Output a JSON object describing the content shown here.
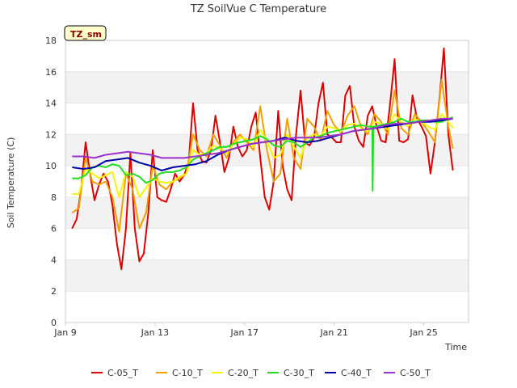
{
  "chart_data": {
    "type": "line",
    "title": "TZ SoilVue C Temperature",
    "xlabel": "Time",
    "ylabel": "Soil Temperature (C)",
    "badge": "TZ_sm",
    "xlim": [
      0,
      18
    ],
    "ylim": [
      0,
      18
    ],
    "x_ticks": [
      {
        "x": 0,
        "label": "Jan 9"
      },
      {
        "x": 4,
        "label": "Jan 13"
      },
      {
        "x": 8,
        "label": "Jan 17"
      },
      {
        "x": 12,
        "label": "Jan 21"
      },
      {
        "x": 16,
        "label": "Jan 25"
      }
    ],
    "y_ticks": [
      0,
      2,
      4,
      6,
      8,
      10,
      12,
      14,
      16,
      18
    ],
    "grid": "horizontal bands",
    "legend_position": "bottom",
    "colors": {
      "C-05_T": "#dd0000",
      "C-10_T": "#f0a000",
      "C-20_T": "#f5f500",
      "C-30_T": "#22dd22",
      "C-40_T": "#0000aa",
      "C-50_T": "#9933cc",
      "band": "#f2f2f2",
      "badge_bg": "#ffffcc",
      "badge_border": "#000000"
    },
    "series": [
      {
        "name": "C-05_T",
        "x": [
          0.3,
          0.5,
          0.7,
          0.9,
          1.1,
          1.3,
          1.5,
          1.7,
          1.9,
          2.1,
          2.3,
          2.5,
          2.7,
          2.9,
          3.1,
          3.3,
          3.5,
          3.7,
          3.9,
          4.1,
          4.3,
          4.5,
          4.7,
          4.9,
          5.1,
          5.3,
          5.5,
          5.7,
          5.9,
          6.1,
          6.3,
          6.5,
          6.7,
          6.9,
          7.1,
          7.3,
          7.5,
          7.7,
          7.9,
          8.1,
          8.3,
          8.5,
          8.7,
          8.9,
          9.1,
          9.3,
          9.5,
          9.7,
          9.9,
          10.1,
          10.3,
          10.5,
          10.7,
          10.9,
          11.1,
          11.3,
          11.5,
          11.7,
          11.9,
          12.1,
          12.3,
          12.5,
          12.7,
          12.9,
          13.1,
          13.3,
          13.5,
          13.7,
          13.9,
          14.1,
          14.3,
          14.5,
          14.7,
          14.9,
          15.1,
          15.3,
          15.5,
          15.7,
          15.9,
          16.1,
          16.3,
          16.5,
          16.7,
          16.9,
          17.1,
          17.3
        ],
        "y": [
          6.0,
          6.6,
          8.5,
          11.5,
          9.5,
          7.8,
          8.8,
          9.5,
          9.0,
          7.5,
          5.0,
          3.4,
          6.0,
          10.8,
          6.0,
          3.9,
          4.4,
          7.0,
          11.0,
          8.0,
          7.8,
          7.7,
          8.5,
          9.5,
          9.0,
          9.4,
          10.2,
          14.0,
          11.0,
          10.3,
          10.2,
          11.0,
          13.2,
          11.5,
          9.6,
          10.5,
          12.5,
          11.2,
          10.6,
          11.0,
          12.5,
          13.4,
          10.5,
          8.0,
          7.2,
          9.0,
          13.5,
          10.0,
          8.5,
          7.8,
          12.0,
          14.8,
          11.5,
          11.3,
          11.8,
          14.0,
          15.3,
          12.0,
          11.8,
          11.5,
          11.5,
          14.5,
          15.1,
          12.5,
          11.6,
          11.2,
          13.2,
          13.8,
          12.5,
          11.6,
          11.5,
          14.0,
          16.8,
          11.6,
          11.5,
          11.7,
          14.5,
          13.0,
          12.5,
          11.9,
          9.5,
          11.5,
          14.3,
          17.5,
          12.0,
          9.7
        ]
      },
      {
        "name": "C-10_T",
        "x": [
          0.3,
          0.6,
          0.9,
          1.2,
          1.5,
          1.8,
          2.1,
          2.4,
          2.7,
          3.0,
          3.3,
          3.6,
          3.9,
          4.2,
          4.5,
          4.8,
          5.1,
          5.4,
          5.7,
          6.0,
          6.3,
          6.6,
          6.9,
          7.2,
          7.5,
          7.8,
          8.1,
          8.4,
          8.7,
          9.0,
          9.3,
          9.6,
          9.9,
          10.2,
          10.5,
          10.8,
          11.1,
          11.4,
          11.7,
          12.0,
          12.3,
          12.6,
          12.9,
          13.2,
          13.5,
          13.8,
          14.1,
          14.4,
          14.7,
          15.0,
          15.3,
          15.6,
          15.9,
          16.2,
          16.5,
          16.8,
          17.1,
          17.3
        ],
        "y": [
          7.0,
          7.3,
          10.5,
          9.0,
          8.8,
          9.0,
          8.0,
          5.8,
          9.5,
          8.5,
          6.0,
          7.0,
          10.0,
          8.8,
          8.5,
          9.0,
          9.2,
          9.5,
          12.0,
          11.0,
          10.6,
          12.0,
          11.3,
          10.5,
          11.5,
          12.0,
          11.5,
          11.0,
          13.8,
          11.0,
          9.0,
          9.5,
          13.0,
          10.5,
          9.8,
          13.0,
          12.5,
          11.6,
          13.5,
          12.6,
          12.1,
          13.2,
          13.8,
          12.5,
          12.0,
          13.3,
          12.8,
          12.0,
          14.8,
          12.4,
          12.0,
          13.3,
          12.8,
          12.2,
          11.5,
          15.5,
          12.5,
          11.1
        ]
      },
      {
        "name": "C-20_T",
        "x": [
          0.3,
          0.6,
          0.9,
          1.2,
          1.5,
          1.8,
          2.1,
          2.4,
          2.7,
          3.0,
          3.3,
          3.6,
          3.9,
          4.2,
          4.5,
          4.8,
          5.1,
          5.4,
          5.7,
          6.0,
          6.3,
          6.6,
          6.9,
          7.2,
          7.5,
          7.8,
          8.1,
          8.4,
          8.7,
          9.0,
          9.3,
          9.6,
          9.9,
          10.2,
          10.5,
          10.8,
          11.1,
          11.4,
          11.7,
          12.0,
          12.3,
          12.6,
          12.9,
          13.2,
          13.5,
          13.8,
          14.1,
          14.4,
          14.7,
          15.0,
          15.3,
          15.6,
          15.9,
          16.2,
          16.5,
          16.8,
          17.1,
          17.3
        ],
        "y": [
          8.2,
          8.2,
          9.8,
          9.5,
          9.2,
          9.4,
          9.6,
          8.0,
          9.6,
          9.3,
          8.0,
          8.6,
          9.2,
          9.0,
          8.9,
          9.0,
          9.3,
          9.5,
          11.0,
          10.7,
          10.8,
          11.3,
          11.1,
          10.8,
          11.4,
          11.8,
          11.7,
          11.2,
          12.3,
          11.6,
          10.5,
          10.7,
          12.0,
          11.2,
          10.5,
          11.8,
          12.0,
          11.9,
          12.5,
          12.4,
          12.2,
          12.6,
          12.7,
          12.4,
          12.2,
          12.8,
          12.7,
          12.3,
          13.3,
          12.8,
          12.5,
          13.0,
          12.8,
          12.5,
          12.3,
          13.3,
          12.8,
          12.4
        ]
      },
      {
        "name": "C-30_T",
        "x": [
          0.3,
          0.6,
          0.9,
          1.2,
          1.5,
          1.8,
          2.1,
          2.4,
          2.7,
          3.0,
          3.3,
          3.6,
          3.9,
          4.2,
          4.5,
          4.8,
          5.1,
          5.4,
          5.7,
          6.0,
          6.3,
          6.6,
          6.9,
          7.2,
          7.5,
          7.8,
          8.1,
          8.4,
          8.7,
          9.0,
          9.3,
          9.6,
          9.9,
          10.2,
          10.5,
          10.8,
          11.1,
          11.4,
          11.7,
          12.0,
          12.3,
          12.6,
          12.9,
          13.2,
          13.5,
          13.7,
          13.72,
          13.75,
          13.8,
          14.1,
          14.4,
          14.7,
          15.0,
          15.3,
          15.6,
          15.9,
          16.2,
          16.5,
          16.8,
          17.1,
          17.3
        ],
        "y": [
          9.2,
          9.2,
          9.4,
          9.9,
          10.0,
          9.9,
          10.1,
          10.0,
          9.4,
          9.5,
          9.3,
          8.9,
          9.1,
          9.5,
          9.6,
          9.6,
          9.7,
          9.9,
          10.4,
          10.6,
          10.8,
          11.0,
          11.2,
          11.2,
          11.4,
          11.5,
          11.6,
          11.7,
          11.9,
          11.7,
          11.3,
          11.2,
          11.6,
          11.5,
          11.2,
          11.5,
          11.8,
          11.9,
          12.1,
          12.2,
          12.3,
          12.4,
          12.5,
          12.6,
          12.5,
          12.5,
          8.4,
          12.5,
          12.5,
          12.6,
          12.7,
          12.8,
          13.0,
          12.8,
          12.8,
          12.9,
          12.9,
          12.8,
          12.8,
          13.0,
          13.1
        ]
      },
      {
        "name": "C-40_T",
        "x": [
          0.3,
          0.8,
          1.3,
          1.8,
          2.3,
          2.8,
          3.3,
          3.8,
          4.3,
          4.8,
          5.3,
          5.8,
          6.3,
          6.8,
          7.3,
          7.8,
          8.3,
          8.8,
          9.3,
          9.8,
          10.3,
          10.8,
          11.3,
          11.8,
          12.3,
          12.8,
          13.3,
          13.8,
          14.3,
          14.8,
          15.3,
          15.8,
          16.3,
          16.8,
          17.3
        ],
        "y": [
          9.9,
          9.8,
          9.9,
          10.3,
          10.4,
          10.5,
          10.2,
          10.0,
          9.7,
          9.9,
          10.0,
          10.1,
          10.3,
          10.7,
          11.0,
          11.2,
          11.4,
          11.5,
          11.6,
          11.8,
          11.6,
          11.5,
          11.6,
          11.8,
          12.0,
          12.2,
          12.3,
          12.4,
          12.5,
          12.6,
          12.7,
          12.8,
          12.8,
          12.9,
          13.0
        ]
      },
      {
        "name": "C-50_T",
        "x": [
          0.3,
          0.8,
          1.3,
          1.8,
          2.3,
          2.8,
          3.3,
          3.8,
          4.3,
          4.8,
          5.3,
          5.8,
          6.3,
          6.8,
          7.3,
          7.8,
          8.3,
          8.8,
          9.3,
          9.8,
          10.3,
          10.8,
          11.3,
          11.8,
          12.3,
          12.8,
          13.3,
          13.8,
          14.3,
          14.8,
          15.3,
          15.8,
          16.3,
          16.8,
          17.3
        ],
        "y": [
          10.6,
          10.6,
          10.5,
          10.7,
          10.8,
          10.9,
          10.8,
          10.7,
          10.5,
          10.5,
          10.5,
          10.6,
          10.7,
          10.8,
          11.0,
          11.2,
          11.4,
          11.5,
          11.6,
          11.7,
          11.8,
          11.8,
          11.8,
          11.9,
          12.0,
          12.2,
          12.3,
          12.4,
          12.6,
          12.7,
          12.7,
          12.8,
          12.9,
          13.0,
          13.0
        ]
      }
    ]
  }
}
